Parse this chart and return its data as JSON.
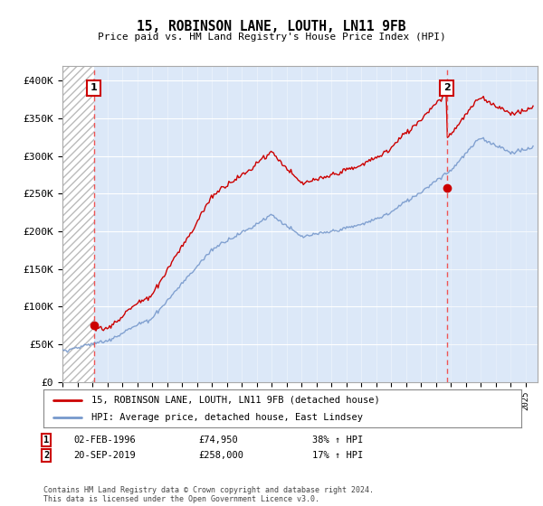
{
  "title": "15, ROBINSON LANE, LOUTH, LN11 9FB",
  "subtitle": "Price paid vs. HM Land Registry's House Price Index (HPI)",
  "ylabel_ticks": [
    "£0",
    "£50K",
    "£100K",
    "£150K",
    "£200K",
    "£250K",
    "£300K",
    "£350K",
    "£400K"
  ],
  "ytick_values": [
    0,
    50000,
    100000,
    150000,
    200000,
    250000,
    300000,
    350000,
    400000
  ],
  "ylim": [
    0,
    420000
  ],
  "xlim_start": 1994.0,
  "xlim_end": 2025.8,
  "hpi_color": "#7799cc",
  "price_color": "#cc0000",
  "marker_color": "#cc0000",
  "dashed_line_color": "#ee5555",
  "legend_label_price": "15, ROBINSON LANE, LOUTH, LN11 9FB (detached house)",
  "legend_label_hpi": "HPI: Average price, detached house, East Lindsey",
  "transaction1_date": "02-FEB-1996",
  "transaction1_price": "£74,950",
  "transaction1_hpi": "38% ↑ HPI",
  "transaction2_date": "20-SEP-2019",
  "transaction2_price": "£258,000",
  "transaction2_hpi": "17% ↑ HPI",
  "footer": "Contains HM Land Registry data © Crown copyright and database right 2024.\nThis data is licensed under the Open Government Licence v3.0.",
  "plot_bg_color": "#dce8f8",
  "hatch_bg_color": "#e8e8e8",
  "grid_color": "#ffffff",
  "transaction1_x": 1996.09,
  "transaction1_y": 74950,
  "transaction2_x": 2019.72,
  "transaction2_y": 258000
}
